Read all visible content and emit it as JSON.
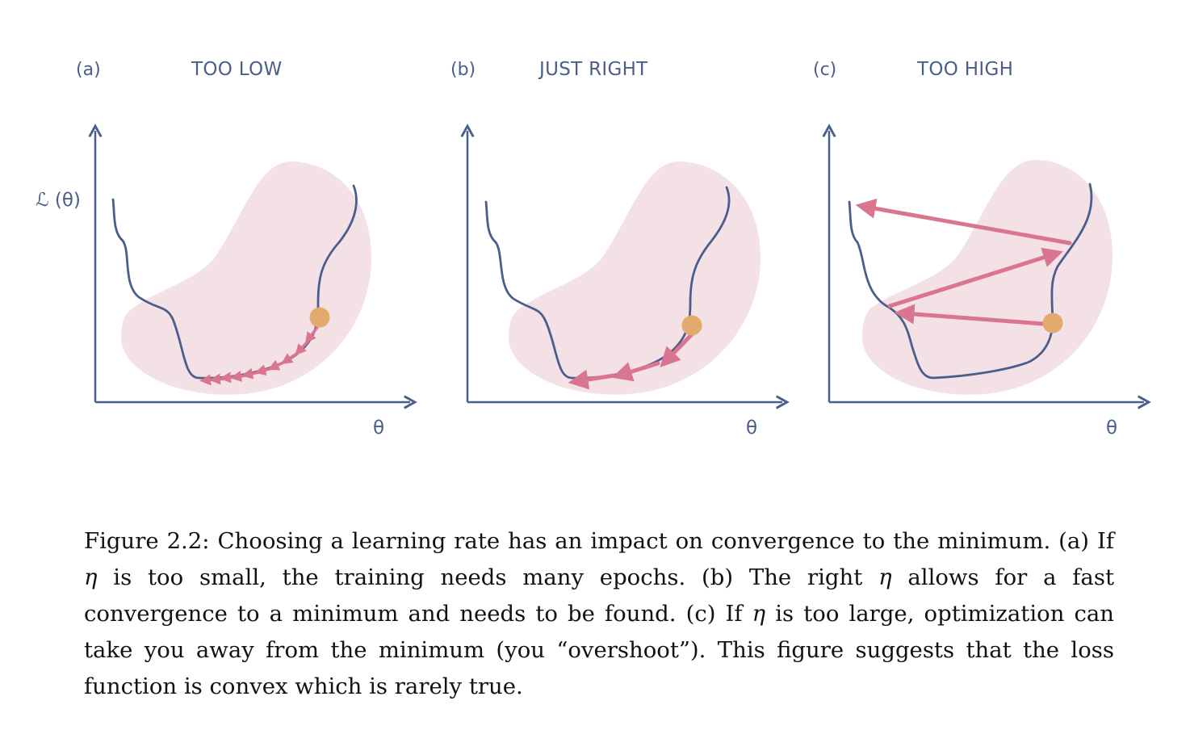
{
  "panels": [
    {
      "label": "(a)",
      "title": "TOO LOW",
      "y_axis_label": "ℒ (θ)",
      "x_axis_label": "θ"
    },
    {
      "label": "(b)",
      "title": "JUST RIGHT",
      "y_axis_label": "",
      "x_axis_label": "θ"
    },
    {
      "label": "(c)",
      "title": "TOO HIGH",
      "y_axis_label": "",
      "x_axis_label": "θ"
    }
  ],
  "colors": {
    "axis": "#4a5e8c",
    "curve": "#4a5e8c",
    "blob": "#f4e1e6",
    "step_arrow": "#d9758f",
    "start_point": "#e2aa6c"
  },
  "caption": {
    "parts": [
      "Figure 2.2: Choosing a learning rate has an impact on convergence to the minimum. (a) If ",
      "η",
      " is too small, the training needs many epochs.  (b) The right ",
      "η",
      " allows for a fast convergence to a minimum and needs to be found.  (c) If ",
      "η",
      " is too large, optimization can take you away from the minimum (you “overshoot”).  This figure suggests that the loss function is convex which is rarely true."
    ]
  }
}
